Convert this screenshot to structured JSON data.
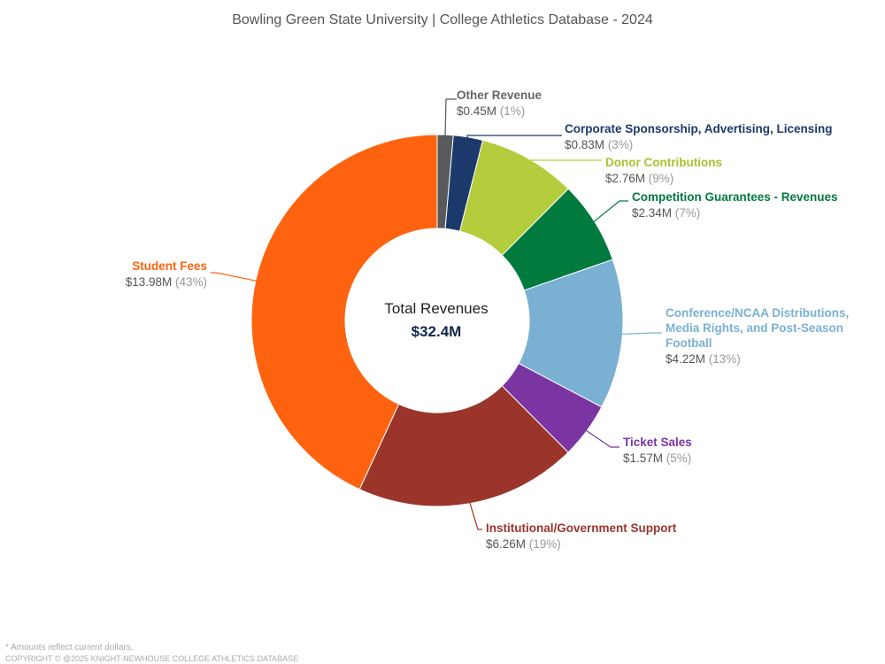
{
  "chart_data": {
    "type": "pie",
    "variant": "donut",
    "title": "Bowling Green State University | College Athletics Database - 2024",
    "center_label": "Total Revenues",
    "center_value": "$32.4M",
    "slices": [
      {
        "name": "Other Revenue",
        "value": 0.45,
        "value_label": "$0.45M",
        "pct_label": "(1%)",
        "color": "#58595b",
        "label_color": "#666666"
      },
      {
        "name": "Corporate Sponsorship, Advertising, Licensing",
        "value": 0.83,
        "value_label": "$0.83M",
        "pct_label": "(3%)",
        "color": "#1b3a6b",
        "label_color": "#1b3a6b"
      },
      {
        "name": "Donor Contributions",
        "value": 2.76,
        "value_label": "$2.76M",
        "pct_label": "(9%)",
        "color": "#b5cc3c",
        "label_color": "#a9c230"
      },
      {
        "name": "Competition Guarantees - Revenues",
        "value": 2.34,
        "value_label": "$2.34M",
        "pct_label": "(7%)",
        "color": "#007a3d",
        "label_color": "#007a3d"
      },
      {
        "name": "Conference/NCAA Distributions, Media Rights, and Post-Season Football",
        "value": 4.22,
        "value_label": "$4.22M",
        "pct_label": "(13%)",
        "color": "#7ab1d3",
        "label_color": "#7ab1d3"
      },
      {
        "name": "Ticket Sales",
        "value": 1.57,
        "value_label": "$1.57M",
        "pct_label": "(5%)",
        "color": "#7a35a3",
        "label_color": "#7a35a3"
      },
      {
        "name": "Institutional/Government Support",
        "value": 6.26,
        "value_label": "$6.26M",
        "pct_label": "(19%)",
        "color": "#9b352c",
        "label_color": "#9b352c"
      },
      {
        "name": "Student Fees",
        "value": 13.98,
        "value_label": "$13.98M",
        "pct_label": "(43%)",
        "color": "#ff6310",
        "label_color": "#ff6310"
      }
    ]
  },
  "footer": {
    "note": "* Amounts reflect current dollars.",
    "copyright": "COPYRIGHT © @2025 KNIGHT-NEWHOUSE COLLEGE ATHLETICS DATABASE"
  }
}
